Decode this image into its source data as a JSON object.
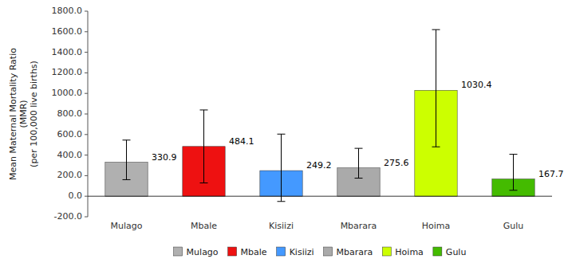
{
  "chart_data": {
    "type": "bar",
    "categories": [
      "Mulago",
      "Mbale",
      "Kisiizi",
      "Mbarara",
      "Hoima",
      "Gulu"
    ],
    "values": [
      330.9,
      484.1,
      249.2,
      275.6,
      1030.4,
      167.7
    ],
    "error_low": [
      170.0,
      355.0,
      300.0,
      100.0,
      550.0,
      110.0
    ],
    "error_high": [
      215.0,
      355.0,
      355.0,
      190.0,
      590.0,
      240.0
    ],
    "colors": [
      "#b0b0b0",
      "#ee1111",
      "#4499ff",
      "#aaaaaa",
      "#ccff00",
      "#44bb00"
    ],
    "y_label": "Mean Maternal Mortality Ratio\n(MMR)\n(per 100,000 live births)",
    "ylim": [
      -200,
      1800
    ],
    "yticks": [
      {
        "value": -200,
        "label": "-200.0"
      },
      {
        "value": 0,
        "label": "0.0"
      },
      {
        "value": 200,
        "label": "200.0"
      },
      {
        "value": 400,
        "label": "400.0"
      },
      {
        "value": 600,
        "label": "600.0"
      },
      {
        "value": 800,
        "label": "800.0"
      },
      {
        "value": 1000,
        "label": "1000.0"
      },
      {
        "value": 1200,
        "label": "1200.0"
      },
      {
        "value": 1400,
        "label": "1400.0"
      },
      {
        "value": 1600,
        "label": "1600.0"
      },
      {
        "value": 1800,
        "label": "1800.0"
      }
    ],
    "grid": false,
    "data_labels": true,
    "legend": "bottom"
  }
}
